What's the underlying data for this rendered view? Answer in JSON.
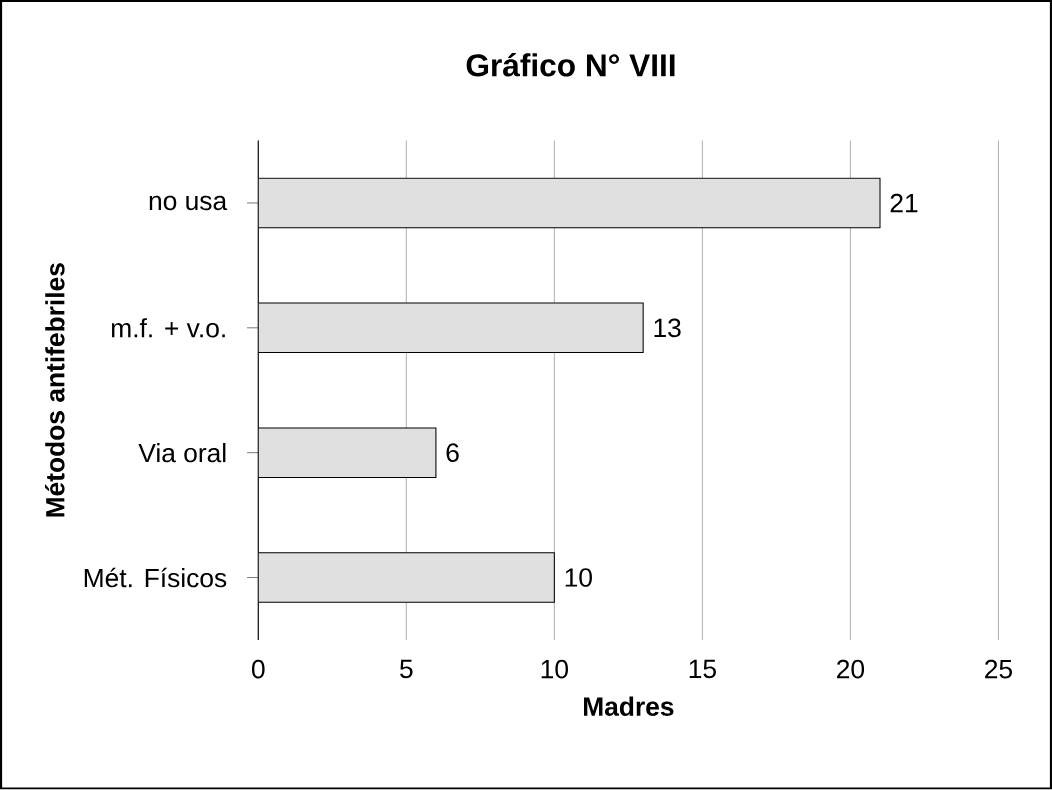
{
  "chart_data": {
    "type": "bar",
    "orientation": "horizontal",
    "title": "Gráfico N° VIII",
    "xlabel": "Madres",
    "ylabel": "Métodos antifebriles",
    "categories": [
      "no usa",
      "m.f. + v.o.",
      "Via oral",
      "Mét. Físicos"
    ],
    "values": [
      21,
      13,
      6,
      10
    ],
    "color": "#e0e0e0",
    "data_labels": true,
    "xlim": [
      0,
      25
    ],
    "xticks": [
      0,
      5,
      10,
      15,
      20,
      25
    ],
    "grid": "x"
  }
}
